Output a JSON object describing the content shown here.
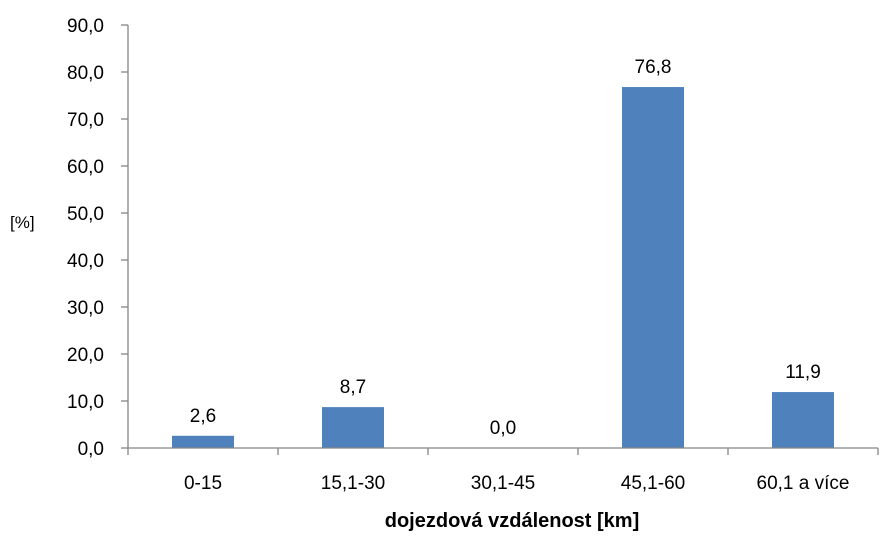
{
  "chart_data": {
    "type": "bar",
    "categories": [
      "0-15",
      "15,1-30",
      "30,1-45",
      "45,1-60",
      "60,1 a více"
    ],
    "values": [
      2.6,
      8.7,
      0.0,
      76.8,
      11.9
    ],
    "data_labels": [
      "2,6",
      "8,7",
      "0,0",
      "76,8",
      "11,9"
    ],
    "title": "",
    "xlabel": "dojezdová vzdálenost [km]",
    "ylabel": "[%]",
    "ylim": [
      0,
      90
    ],
    "yticks": [
      0,
      10,
      20,
      30,
      40,
      50,
      60,
      70,
      80,
      90
    ],
    "ytick_labels": [
      "0,0",
      "10,0",
      "20,0",
      "30,0",
      "40,0",
      "50,0",
      "60,0",
      "70,0",
      "80,0",
      "90,0"
    ],
    "grid": false,
    "legend": "none",
    "bar_color": "#4F81BD",
    "axis_color": "#868686"
  }
}
